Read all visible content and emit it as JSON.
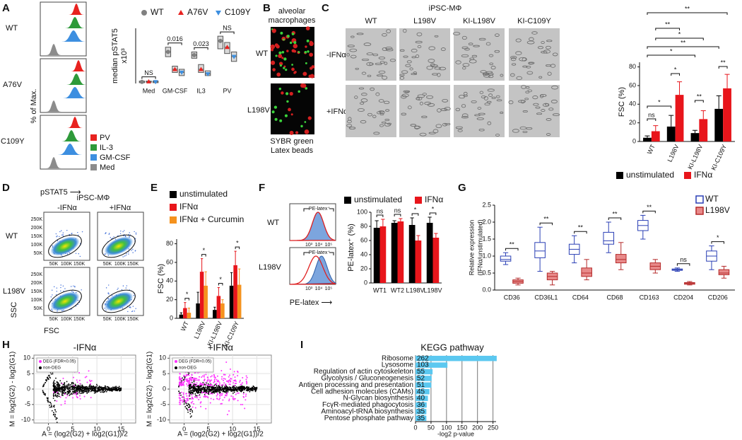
{
  "panel_labels": [
    "A",
    "B",
    "C",
    "D",
    "E",
    "F",
    "G",
    "H",
    "I"
  ],
  "A": {
    "rows": [
      "WT",
      "A76V",
      "C109Y"
    ],
    "legend": [
      {
        "name": "PV",
        "color": "#e8221f"
      },
      {
        "name": "IL-3",
        "color": "#2e9a3a"
      },
      {
        "name": "GM-CSF",
        "color": "#3d8fe0"
      },
      {
        "name": "Med",
        "color": "#8c8c8c"
      }
    ],
    "ylabel": "% of Max.",
    "xlabel": "pSTAT5 ⟶"
  },
  "B": {
    "title_lines": [
      "alveolar",
      "macrophages"
    ],
    "rows": [
      "WT",
      "L198V"
    ],
    "legend": [
      {
        "name": "SYBR green",
        "color": "#2db82d"
      },
      {
        "name": "Latex beads",
        "color": "#e02020"
      }
    ]
  },
  "C": {
    "title": "iPSC-MΦ",
    "columns": [
      "WT",
      "L198V",
      "KI-L198V",
      "KI-C109Y"
    ],
    "rows": [
      "-IFNα",
      "+IFNα"
    ]
  },
  "D": {
    "title": "iPSC-MΦ",
    "columns": [
      "-IFNα",
      "+IFNα"
    ],
    "rows": [
      "WT",
      "L198V"
    ],
    "xlabel": "FSC",
    "ylabel": "SSC",
    "xticks": [
      "50K",
      "100K",
      "150K"
    ],
    "yticks": [
      "50K",
      "100K",
      "150K",
      "200K",
      "250K"
    ]
  },
  "F": {
    "rows": [
      "WT",
      "L198V"
    ],
    "gate": "PE-latex⁺",
    "xticks": [
      "10³",
      "10⁴",
      "10⁵"
    ],
    "xlabel": "PE-latex ⟶"
  },
  "chart_data": [
    {
      "type": "box",
      "ylabel": "median pSTAT5",
      "y_unit": "x10³",
      "ylim": [
        0,
        35
      ],
      "categories": [
        "Med",
        "GM-CSF",
        "IL3",
        "PV"
      ],
      "box_color": "#555555",
      "box_fill": "#d9d9d9",
      "series": [
        {
          "name": "WT",
          "color": "#808080",
          "marker": "circle",
          "q1": [
            0.5,
            17,
            16,
            22
          ],
          "median": [
            1,
            20,
            18,
            27
          ],
          "q3": [
            1.5,
            23,
            20,
            30
          ]
        },
        {
          "name": "A76V",
          "color": "#e8221f",
          "marker": "triangle-up",
          "q1": [
            0.8,
            7,
            7,
            19
          ],
          "median": [
            1.2,
            9,
            9,
            23
          ],
          "q3": [
            1.5,
            11,
            12,
            26
          ]
        },
        {
          "name": "C109Y",
          "color": "#3d8fe0",
          "marker": "triangle-down",
          "q1": [
            0.5,
            5,
            5,
            14
          ],
          "median": [
            1,
            7,
            6,
            17
          ],
          "q3": [
            1.5,
            9,
            8,
            20
          ]
        }
      ],
      "annotations": [
        "NS",
        "0.016",
        "0.023",
        "NS"
      ]
    },
    {
      "type": "bar",
      "ylabel": "FSC (%)",
      "ylim": [
        0,
        85
      ],
      "yticks": [
        0,
        20,
        40,
        60,
        80
      ],
      "categories": [
        "WT",
        "L198V",
        "KI-L198V",
        "KI-C109Y"
      ],
      "series": [
        {
          "name": "unstimulated",
          "color": "#000000",
          "values": [
            4,
            16,
            9,
            35
          ],
          "errors": [
            2,
            12,
            3,
            14
          ]
        },
        {
          "name": "IFNα",
          "color": "#e8151b",
          "values": [
            11,
            50,
            24,
            57
          ],
          "errors": [
            6,
            14,
            9,
            15
          ]
        }
      ],
      "annotations": [
        "ns",
        "*",
        "*",
        "**",
        "**",
        "*",
        "**",
        "*",
        "**",
        "**"
      ]
    },
    {
      "type": "bar",
      "ylabel": "FSC (%)",
      "ylim": [
        0,
        85
      ],
      "yticks": [
        0,
        20,
        40,
        60,
        80
      ],
      "categories": [
        "WT",
        "L198V",
        "KI-L198V",
        "KI-C109Y"
      ],
      "series": [
        {
          "name": "unstimulated",
          "color": "#000000",
          "values": [
            4,
            16,
            9,
            35
          ],
          "errors": [
            2,
            12,
            3,
            14
          ]
        },
        {
          "name": "IFNα",
          "color": "#e8151b",
          "values": [
            11,
            50,
            24,
            57
          ],
          "errors": [
            6,
            14,
            9,
            15
          ]
        },
        {
          "name": "IFNα + Curcumin",
          "color": "#f5921e",
          "values": [
            6,
            35,
            16,
            36
          ],
          "errors": [
            5,
            15,
            4,
            17
          ]
        }
      ],
      "annotations": [
        "*",
        "*",
        "*",
        "*"
      ]
    },
    {
      "type": "bar",
      "ylabel": "PE-latex⁺ (%)",
      "ylim": [
        0,
        100
      ],
      "yticks": [
        0,
        20,
        40,
        60,
        80,
        100
      ],
      "categories": [
        "WT1",
        "WT2",
        "L198V",
        "L198V"
      ],
      "series": [
        {
          "name": "unstimulated",
          "color": "#000000",
          "values": [
            78,
            85,
            82,
            85
          ],
          "errors": [
            10,
            3,
            10,
            8
          ]
        },
        {
          "name": "IFNα",
          "color": "#e8151b",
          "values": [
            80,
            87,
            60,
            64
          ],
          "errors": [
            10,
            4,
            7,
            6
          ]
        }
      ],
      "annotations": [
        "ns",
        "ns",
        "*",
        "*"
      ]
    },
    {
      "type": "box",
      "ylabel_lines": [
        "Relative expression",
        "(IFNα/unstimulated)"
      ],
      "ylim": [
        0,
        2.5
      ],
      "yticks": [
        {
          "value": 0,
          "label": "0.0"
        },
        0.5,
        {
          "value": 1,
          "label": "1.0"
        },
        1.5,
        {
          "value": 2,
          "label": "2.0"
        },
        2.5
      ],
      "categories": [
        "CD36",
        "CD36L1",
        "CD64",
        "CD68",
        "CD163",
        "CD204",
        "CD206"
      ],
      "series": [
        {
          "name": "WT",
          "color": "#2a3fb5",
          "fill": "#ffffff",
          "min": [
            0.75,
            0.55,
            0.8,
            1.1,
            1.5,
            0.55,
            0.6
          ],
          "q1": [
            0.85,
            0.95,
            1.05,
            1.35,
            1.75,
            0.58,
            0.85
          ],
          "median": [
            0.9,
            1.15,
            1.2,
            1.45,
            1.9,
            0.6,
            1.0
          ],
          "q3": [
            1.0,
            1.4,
            1.35,
            1.7,
            2.05,
            0.62,
            1.15
          ],
          "max": [
            1.1,
            1.85,
            1.6,
            2.0,
            2.2,
            0.65,
            1.3
          ]
        },
        {
          "name": "L198V",
          "color": "#b52a2a",
          "fill": "#e88a8a",
          "min": [
            0.15,
            0.15,
            0.3,
            0.6,
            0.5,
            0.15,
            0.35
          ],
          "q1": [
            0.2,
            0.3,
            0.4,
            0.8,
            0.6,
            0.17,
            0.45
          ],
          "median": [
            0.25,
            0.4,
            0.5,
            0.9,
            0.7,
            0.2,
            0.5
          ],
          "q3": [
            0.3,
            0.5,
            0.65,
            1.05,
            0.8,
            0.22,
            0.6
          ],
          "max": [
            0.35,
            0.55,
            0.9,
            1.4,
            0.9,
            0.25,
            0.7
          ]
        }
      ],
      "annotations": [
        "**",
        "**",
        "**",
        "**",
        "**",
        "ns",
        "*"
      ]
    },
    {
      "type": "scatter",
      "title": "-IFNα",
      "xlabel": "A = (log2(G2) + log2(G1))/2",
      "ylabel": "M = log2(G2) - log2(G1)",
      "xlim": [
        -3,
        18
      ],
      "ylim": [
        -11,
        11
      ],
      "xticks": [
        0,
        5,
        10,
        15
      ],
      "yticks": [
        -10,
        -5,
        0,
        5,
        10
      ],
      "grid": true,
      "legend": [
        {
          "name": "DEG (FDR<0.05)",
          "color": "#ff33ff"
        },
        {
          "name": "non-DEG",
          "color": "#000000"
        }
      ]
    },
    {
      "type": "scatter",
      "title": "+IFNα",
      "xlabel": "A = (log2(G2) + log2(G1))/2",
      "ylabel": "M = log2(G2) - log2(G1)",
      "xlim": [
        -3,
        18
      ],
      "ylim": [
        -11,
        11
      ],
      "xticks": [
        0,
        5,
        10,
        15
      ],
      "yticks": [
        -10,
        -5,
        0,
        5,
        10
      ],
      "grid": true,
      "legend": [
        {
          "name": "DEG (FDR<0.05)",
          "color": "#ff33ff"
        },
        {
          "name": "non-DEG",
          "color": "#000000"
        }
      ]
    },
    {
      "type": "hbar",
      "title": "KEGG pathway",
      "xlabel": "-log2 p-value",
      "color": "#5bc8f0",
      "grid": true,
      "categories": [
        "Ribosome",
        "Lysosome",
        "Regulation of actin cytoskeleton",
        "Glycolysis / Gluconeogenesis",
        "Antigen processing and presentation",
        "Cell adhesion molecules (CAMs)",
        "N-Glycan biosynthesis",
        "FcγR-mediated phagocytosis",
        "Aminoacyl-tRNA biosynthesis",
        "Pentose phosphate pathway"
      ],
      "values": [
        262,
        103,
        55,
        52,
        51,
        45,
        40,
        36,
        35,
        35
      ],
      "xlim": [
        0,
        260
      ],
      "xticks": [
        0,
        50,
        100,
        150,
        200,
        250
      ]
    }
  ]
}
